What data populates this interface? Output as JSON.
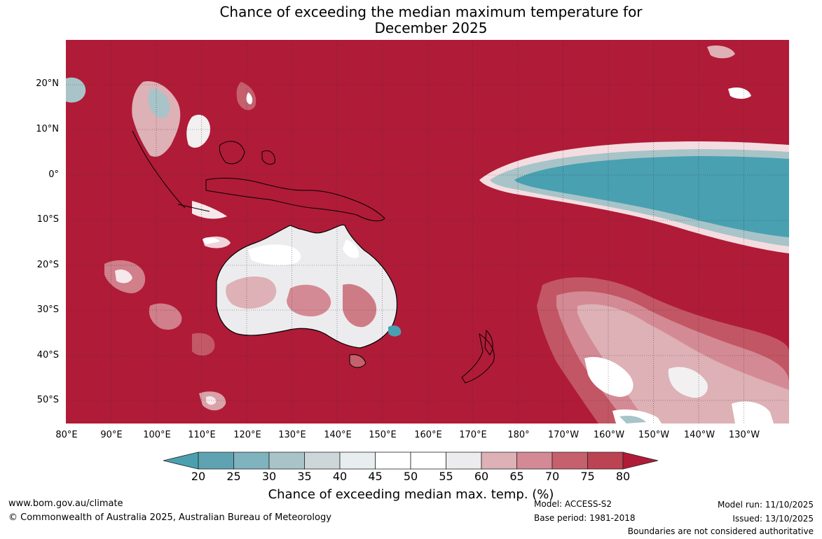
{
  "title_line1": "Chance of exceeding the median maximum temperature for",
  "title_line2": "December 2025",
  "lat_labels": [
    "20°N",
    "10°N",
    "0°",
    "10°S",
    "20°S",
    "30°S",
    "40°S",
    "50°S"
  ],
  "lon_labels": [
    "80°E",
    "90°E",
    "100°E",
    "110°E",
    "120°E",
    "130°E",
    "140°E",
    "150°E",
    "160°E",
    "170°E",
    "180°",
    "170°W",
    "160°W",
    "150°W",
    "140°W",
    "130°W"
  ],
  "colorbar": {
    "ticks": [
      "20",
      "25",
      "30",
      "35",
      "40",
      "45",
      "50",
      "55",
      "60",
      "65",
      "70",
      "75",
      "80"
    ],
    "colors": [
      "#5fa3b3",
      "#7fb3be",
      "#a8c4c8",
      "#cdd6d8",
      "#e8eeef",
      "#ffffff",
      "#ffffff",
      "#ececee",
      "#ddb1b6",
      "#d48a94",
      "#c6606c",
      "#bc4352"
    ],
    "under_color": "#4aa0b0",
    "over_color": "#b01b38",
    "label": "Chance of exceeding median max. temp. (%)"
  },
  "map_colors": {
    "high": "#b01b38",
    "mid_high": "#c6606c",
    "light_pink": "#ddb1b6",
    "near_white": "#f2f0f1",
    "teal": "#49a0b1",
    "pale_teal": "#a8c4c8"
  },
  "footer": {
    "url": "www.bom.gov.au/climate",
    "copyright": "© Commonwealth of Australia 2025, Australian Bureau of Meteorology",
    "model": "Model: ACCESS-S2",
    "base_period": "Base period: 1981-2018",
    "model_run": "Model run: 11/10/2025",
    "issued": "Issued: 13/10/2025",
    "disclaimer": "Boundaries are not considered authoritative"
  }
}
